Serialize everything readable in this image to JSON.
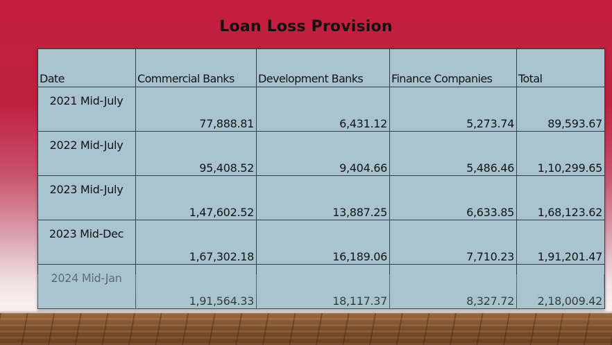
{
  "slide": {
    "title": "Loan Loss Provision"
  },
  "table": {
    "headers": [
      "Date",
      "Commercial Banks",
      "Development Banks",
      "Finance Companies",
      "Total"
    ],
    "rows": [
      [
        "2021 Mid-July",
        "77,888.81",
        "6,431.12",
        "5,273.74",
        "89,593.67"
      ],
      [
        "2022 Mid-July",
        "95,408.52",
        "9,404.66",
        "5,486.46",
        "1,10,299.65"
      ],
      [
        "2023 Mid-July",
        "1,47,602.52",
        "13,887.25",
        "6,633.85",
        "1,68,123.62"
      ],
      [
        "2023 Mid-Dec",
        "1,67,302.18",
        "16,189.06",
        "7,710.23",
        "1,91,201.47"
      ],
      [
        "2024 Mid-Jan",
        "1,91,564.33",
        "18,117.37",
        "8,327.72",
        "2,18,009.42"
      ]
    ]
  },
  "colors": {
    "background_top": "#c21f3f",
    "table_fill": "#a9c4cf",
    "floor": "#7a4d2a"
  }
}
